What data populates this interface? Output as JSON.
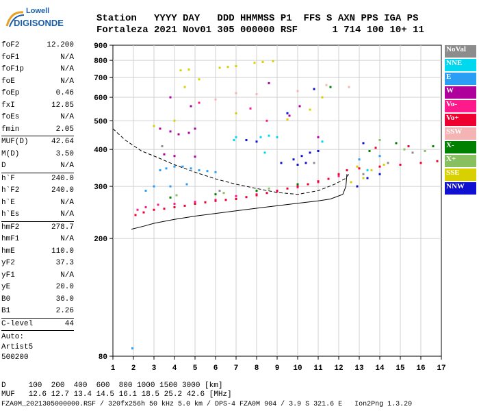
{
  "logo": {
    "line1": "Lowell",
    "line2": "DIGISONDE"
  },
  "header": {
    "row1": "Station   YYYY DAY   DDD HHMMSS P1  FFS S AXN PPS IGA PS",
    "row2": "Fortaleza 2021 Nov01 305 000000 RSF      1 714 100 10+ 11"
  },
  "params": [
    {
      "k": "foF2",
      "v": "12.200"
    },
    {
      "k": "foF1",
      "v": "N/A"
    },
    {
      "k": "foF1p",
      "v": "N/A"
    },
    {
      "k": "foE",
      "v": "N/A"
    },
    {
      "k": "foEp",
      "v": "0.46"
    },
    {
      "k": "fxI",
      "v": "12.85"
    },
    {
      "k": "foEs",
      "v": "N/A"
    },
    {
      "k": "fmin",
      "v": "2.05"
    },
    {
      "sep": true
    },
    {
      "k": "MUF(D)",
      "v": "42.64"
    },
    {
      "k": "M(D)",
      "v": "3.50"
    },
    {
      "k": "D",
      "v": "N/A"
    },
    {
      "sep": true
    },
    {
      "k": "h`F",
      "v": "240.0"
    },
    {
      "k": "h`F2",
      "v": "240.0"
    },
    {
      "k": "h`E",
      "v": "N/A"
    },
    {
      "k": "h`Es",
      "v": "N/A"
    },
    {
      "sep": true
    },
    {
      "k": "hmF2",
      "v": "278.7"
    },
    {
      "k": "hmF1",
      "v": "N/A"
    },
    {
      "k": "hmE",
      "v": "110.0"
    },
    {
      "k": "yF2",
      "v": "37.3"
    },
    {
      "k": "yF1",
      "v": "N/A"
    },
    {
      "k": "yE",
      "v": "20.0"
    },
    {
      "k": "B0",
      "v": "36.0"
    },
    {
      "k": "B1",
      "v": "2.26"
    },
    {
      "sep": true
    },
    {
      "k": "C-level",
      "v": "44"
    },
    {
      "sep": true
    }
  ],
  "auto": {
    "line1": "Auto:",
    "line2": "Artist5",
    "line3": "500200"
  },
  "legend": [
    {
      "label": "NoVal",
      "color": "#8c8c8c"
    },
    {
      "label": "NNE",
      "color": "#00d8f0"
    },
    {
      "label": "E",
      "color": "#2a9df4"
    },
    {
      "label": "W",
      "color": "#b0009c"
    },
    {
      "label": "Vo-",
      "color": "#ff1a8c"
    },
    {
      "label": "Vo+",
      "color": "#ee0030"
    },
    {
      "label": "SSW",
      "color": "#f4b4b4"
    },
    {
      "label": "X-",
      "color": "#008000"
    },
    {
      "label": "X+",
      "color": "#88c060"
    },
    {
      "label": "SSE",
      "color": "#d8d000"
    },
    {
      "label": "NNW",
      "color": "#1010d0"
    }
  ],
  "footer": {
    "line1": "D     100  200  400  600  800 1000 1500 3000 [km]",
    "line2": "MUF   12.6 12.7 13.4 14.5 16.1 18.5 25.2 42.6 [MHz]",
    "line3": "FZA0M_2021305000000.RSF / 320fx256h 50 kHz 5.0 km / DPS-4 FZA0M 904 / 3.9 S 321.6 E   Ion2Png 1.3.20"
  },
  "chart_data": {
    "type": "scatter",
    "title": "",
    "xlabel": "",
    "ylabel": "",
    "xlim": [
      1,
      17
    ],
    "ylim": [
      80,
      900
    ],
    "y_scale": "log",
    "grid": true,
    "xticks": [
      1,
      2,
      3,
      4,
      5,
      6,
      7,
      8,
      9,
      10,
      11,
      12,
      13,
      14,
      15,
      16,
      17
    ],
    "yticks": [
      80,
      200,
      300,
      400,
      500,
      600,
      700,
      800,
      900
    ],
    "series": [
      {
        "name": "NoVal",
        "color": "#8c8c8c",
        "points": [
          [
            13.2,
            330
          ],
          [
            14.4,
            360
          ],
          [
            15.6,
            390
          ],
          [
            3.4,
            410
          ],
          [
            6.2,
            290
          ],
          [
            10.8,
            360
          ]
        ]
      },
      {
        "name": "NNE",
        "color": "#00d8f0",
        "points": [
          [
            8.2,
            440
          ],
          [
            8.6,
            445
          ],
          [
            9.0,
            440
          ],
          [
            6.9,
            430
          ],
          [
            7.0,
            440
          ],
          [
            11.2,
            425
          ],
          [
            8.4,
            390
          ],
          [
            13.4,
            340
          ]
        ]
      },
      {
        "name": "E",
        "color": "#2a9df4",
        "points": [
          [
            3.3,
            340
          ],
          [
            3.6,
            345
          ],
          [
            4.0,
            350
          ],
          [
            4.4,
            350
          ],
          [
            4.8,
            345
          ],
          [
            5.2,
            340
          ],
          [
            5.6,
            338
          ],
          [
            6.0,
            335
          ],
          [
            2.6,
            290
          ],
          [
            3.0,
            300
          ],
          [
            3.8,
            300
          ],
          [
            4.6,
            305
          ],
          [
            1.95,
            85
          ],
          [
            13.0,
            370
          ],
          [
            14.0,
            380
          ]
        ]
      },
      {
        "name": "W",
        "color": "#b0009c",
        "points": [
          [
            3.3,
            470
          ],
          [
            3.8,
            460
          ],
          [
            4.2,
            450
          ],
          [
            4.7,
            455
          ],
          [
            5.0,
            470
          ],
          [
            3.5,
            385
          ],
          [
            4.0,
            380
          ],
          [
            5.0,
            378
          ],
          [
            9.6,
            520
          ],
          [
            10.1,
            560
          ],
          [
            11.0,
            440
          ],
          [
            3.8,
            600
          ],
          [
            4.8,
            560
          ],
          [
            8.6,
            670
          ]
        ]
      },
      {
        "name": "Vo-",
        "color": "#ff1a8c",
        "points": [
          [
            2.2,
            250
          ],
          [
            2.6,
            255
          ],
          [
            3.2,
            260
          ],
          [
            4.0,
            262
          ],
          [
            5.0,
            266
          ],
          [
            6.0,
            270
          ],
          [
            7.0,
            278
          ],
          [
            8.0,
            282
          ],
          [
            9.0,
            288
          ],
          [
            10.0,
            298
          ],
          [
            11.0,
            310
          ],
          [
            12.0,
            325
          ],
          [
            7.7,
            550
          ],
          [
            5.2,
            575
          ],
          [
            8.5,
            500
          ]
        ]
      },
      {
        "name": "Vo+",
        "color": "#ee0030",
        "points": [
          [
            2.1,
            240
          ],
          [
            2.5,
            245
          ],
          [
            3.0,
            250
          ],
          [
            3.5,
            252
          ],
          [
            4.0,
            255
          ],
          [
            4.5,
            258
          ],
          [
            5.0,
            262
          ],
          [
            5.5,
            265
          ],
          [
            6.0,
            268
          ],
          [
            6.5,
            270
          ],
          [
            7.0,
            272
          ],
          [
            7.5,
            276
          ],
          [
            8.0,
            280
          ],
          [
            8.5,
            285
          ],
          [
            9.0,
            290
          ],
          [
            9.5,
            295
          ],
          [
            10.0,
            300
          ],
          [
            10.5,
            305
          ],
          [
            11.0,
            312
          ],
          [
            11.5,
            318
          ],
          [
            12.0,
            330
          ],
          [
            12.4,
            340
          ],
          [
            13.0,
            345
          ],
          [
            14.0,
            350
          ],
          [
            15.0,
            355
          ],
          [
            16.0,
            360
          ],
          [
            16.8,
            365
          ],
          [
            13.8,
            405
          ],
          [
            15.4,
            410
          ]
        ]
      },
      {
        "name": "SSW",
        "color": "#f4b4b4",
        "points": [
          [
            7.0,
            620
          ],
          [
            8.0,
            615
          ],
          [
            6.0,
            590
          ],
          [
            10.0,
            630
          ],
          [
            11.4,
            660
          ],
          [
            12.5,
            650
          ]
        ]
      },
      {
        "name": "X-",
        "color": "#008000",
        "points": [
          [
            3.8,
            275
          ],
          [
            6.0,
            282
          ],
          [
            8.0,
            290
          ],
          [
            10.0,
            305
          ],
          [
            14.8,
            420
          ],
          [
            16.6,
            410
          ],
          [
            11.6,
            650
          ],
          [
            13.5,
            395
          ]
        ]
      },
      {
        "name": "X+",
        "color": "#88c060",
        "points": [
          [
            4.1,
            280
          ],
          [
            6.4,
            285
          ],
          [
            8.6,
            295
          ],
          [
            15.2,
            400
          ],
          [
            16.2,
            395
          ],
          [
            14.0,
            430
          ]
        ]
      },
      {
        "name": "SSE",
        "color": "#d8d000",
        "points": [
          [
            4.3,
            740
          ],
          [
            4.7,
            745
          ],
          [
            6.2,
            755
          ],
          [
            6.6,
            760
          ],
          [
            7.0,
            765
          ],
          [
            7.9,
            785
          ],
          [
            8.3,
            790
          ],
          [
            8.8,
            795
          ],
          [
            4.5,
            650
          ],
          [
            5.2,
            690
          ],
          [
            7.0,
            530
          ],
          [
            10.6,
            545
          ],
          [
            11.2,
            600
          ],
          [
            4.0,
            500
          ],
          [
            3.0,
            480
          ],
          [
            9.5,
            505
          ],
          [
            13.2,
            320
          ],
          [
            13.6,
            340
          ],
          [
            14.2,
            355
          ],
          [
            12.6,
            310
          ],
          [
            12.9,
            350
          ]
        ]
      },
      {
        "name": "NNW",
        "color": "#1010d0",
        "points": [
          [
            9.8,
            370
          ],
          [
            10.2,
            380
          ],
          [
            10.6,
            390
          ],
          [
            11.0,
            395
          ],
          [
            10.4,
            360
          ],
          [
            10.0,
            355
          ],
          [
            9.2,
            360
          ],
          [
            12.9,
            300
          ],
          [
            13.4,
            320
          ],
          [
            14.0,
            330
          ],
          [
            13.2,
            420
          ],
          [
            10.8,
            640
          ],
          [
            9.5,
            530
          ],
          [
            7.5,
            430
          ],
          [
            8.0,
            425
          ]
        ]
      }
    ],
    "lines": [
      {
        "name": "",
        "style": "dashed",
        "points": [
          [
            1.0,
            470
          ],
          [
            1.6,
            430
          ],
          [
            2.4,
            395
          ],
          [
            3.2,
            375
          ],
          [
            4.0,
            355
          ],
          [
            5.0,
            335
          ],
          [
            6.0,
            318
          ],
          [
            7.0,
            305
          ],
          [
            8.0,
            295
          ],
          [
            9.0,
            286
          ],
          [
            10.0,
            282
          ],
          [
            11.0,
            290
          ],
          [
            11.8,
            305
          ],
          [
            12.3,
            318
          ],
          [
            12.5,
            330
          ]
        ]
      },
      {
        "name": "",
        "style": "solid",
        "points": [
          [
            1.9,
            215
          ],
          [
            2.5,
            220
          ],
          [
            3.0,
            225
          ],
          [
            4.0,
            232
          ],
          [
            5.0,
            238
          ],
          [
            6.0,
            243
          ],
          [
            7.0,
            248
          ],
          [
            8.0,
            253
          ],
          [
            9.0,
            258
          ],
          [
            10.0,
            263
          ],
          [
            11.0,
            268
          ],
          [
            11.6,
            272
          ],
          [
            12.2,
            282
          ],
          [
            12.35,
            300
          ],
          [
            12.4,
            330
          ]
        ]
      }
    ]
  }
}
